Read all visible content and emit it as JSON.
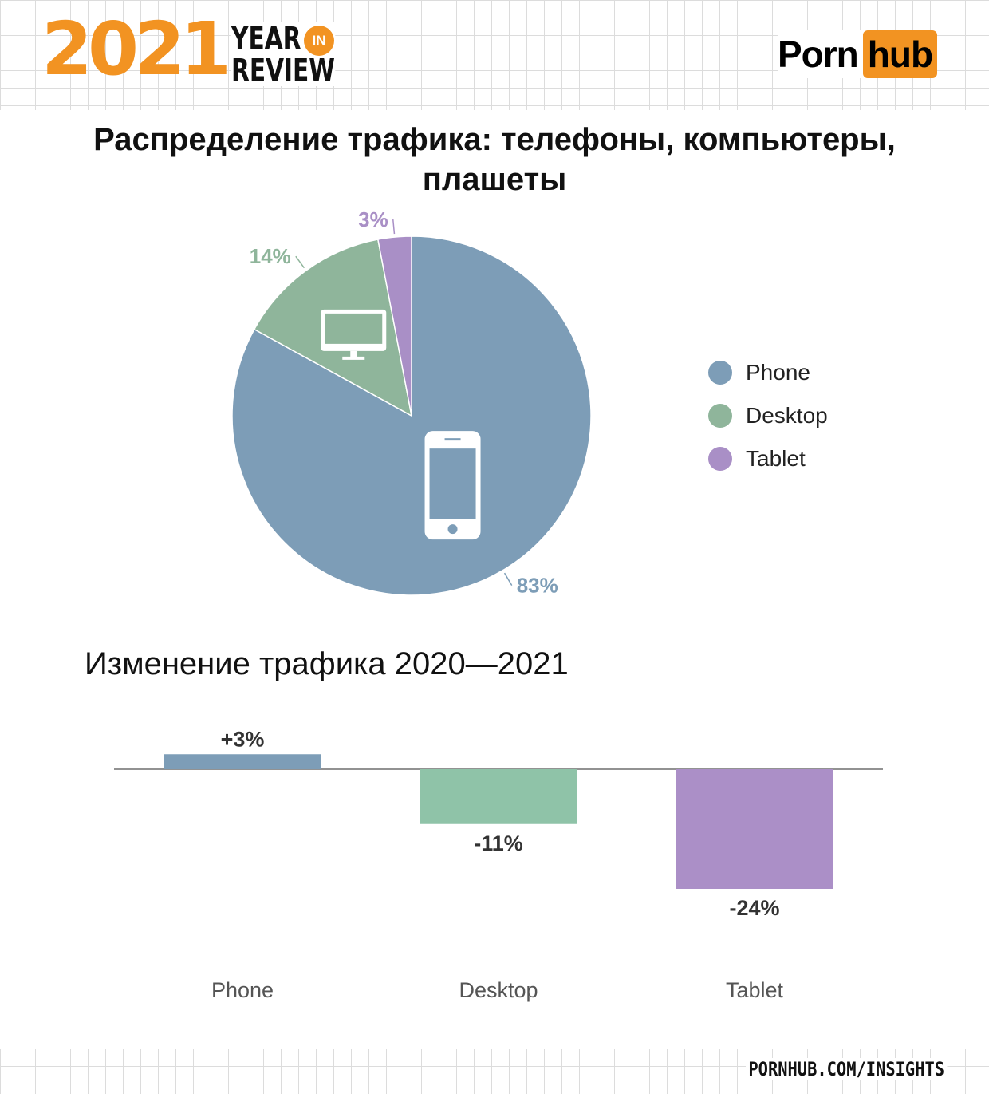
{
  "header": {
    "year": "2021",
    "year_label": "YEAR",
    "in_label": "IN",
    "review_label": "REVIEW",
    "logo_left": "Porn",
    "logo_right": "hub"
  },
  "title": "Распределение трафика: телефоны, компьютеры, плашеты",
  "chart_data": [
    {
      "type": "pie",
      "title": "Распределение трафика: телефоны, компьютеры, плашеты",
      "categories": [
        "Phone",
        "Desktop",
        "Tablet"
      ],
      "values": [
        83,
        14,
        3
      ],
      "labels": [
        "83%",
        "14%",
        "3%"
      ],
      "colors": [
        "#7d9db7",
        "#8fb59b",
        "#a98fc6"
      ],
      "icons": [
        "phone-icon",
        "desktop-icon",
        ""
      ],
      "legend": [
        "Phone",
        "Desktop",
        "Tablet"
      ],
      "legend_position": "right"
    },
    {
      "type": "bar",
      "title": "Изменение трафика 2020—2021",
      "categories": [
        "Phone",
        "Desktop",
        "Tablet"
      ],
      "values": [
        3,
        -11,
        -24
      ],
      "labels": [
        "+3%",
        "-11%",
        "-24%"
      ],
      "colors": [
        "#7d9db7",
        "#8fc3a8",
        "#ab8fc7"
      ],
      "xlabel": "",
      "ylabel": ""
    }
  ],
  "footer": {
    "url": "PORNHUB.COM/INSIGHTS"
  }
}
